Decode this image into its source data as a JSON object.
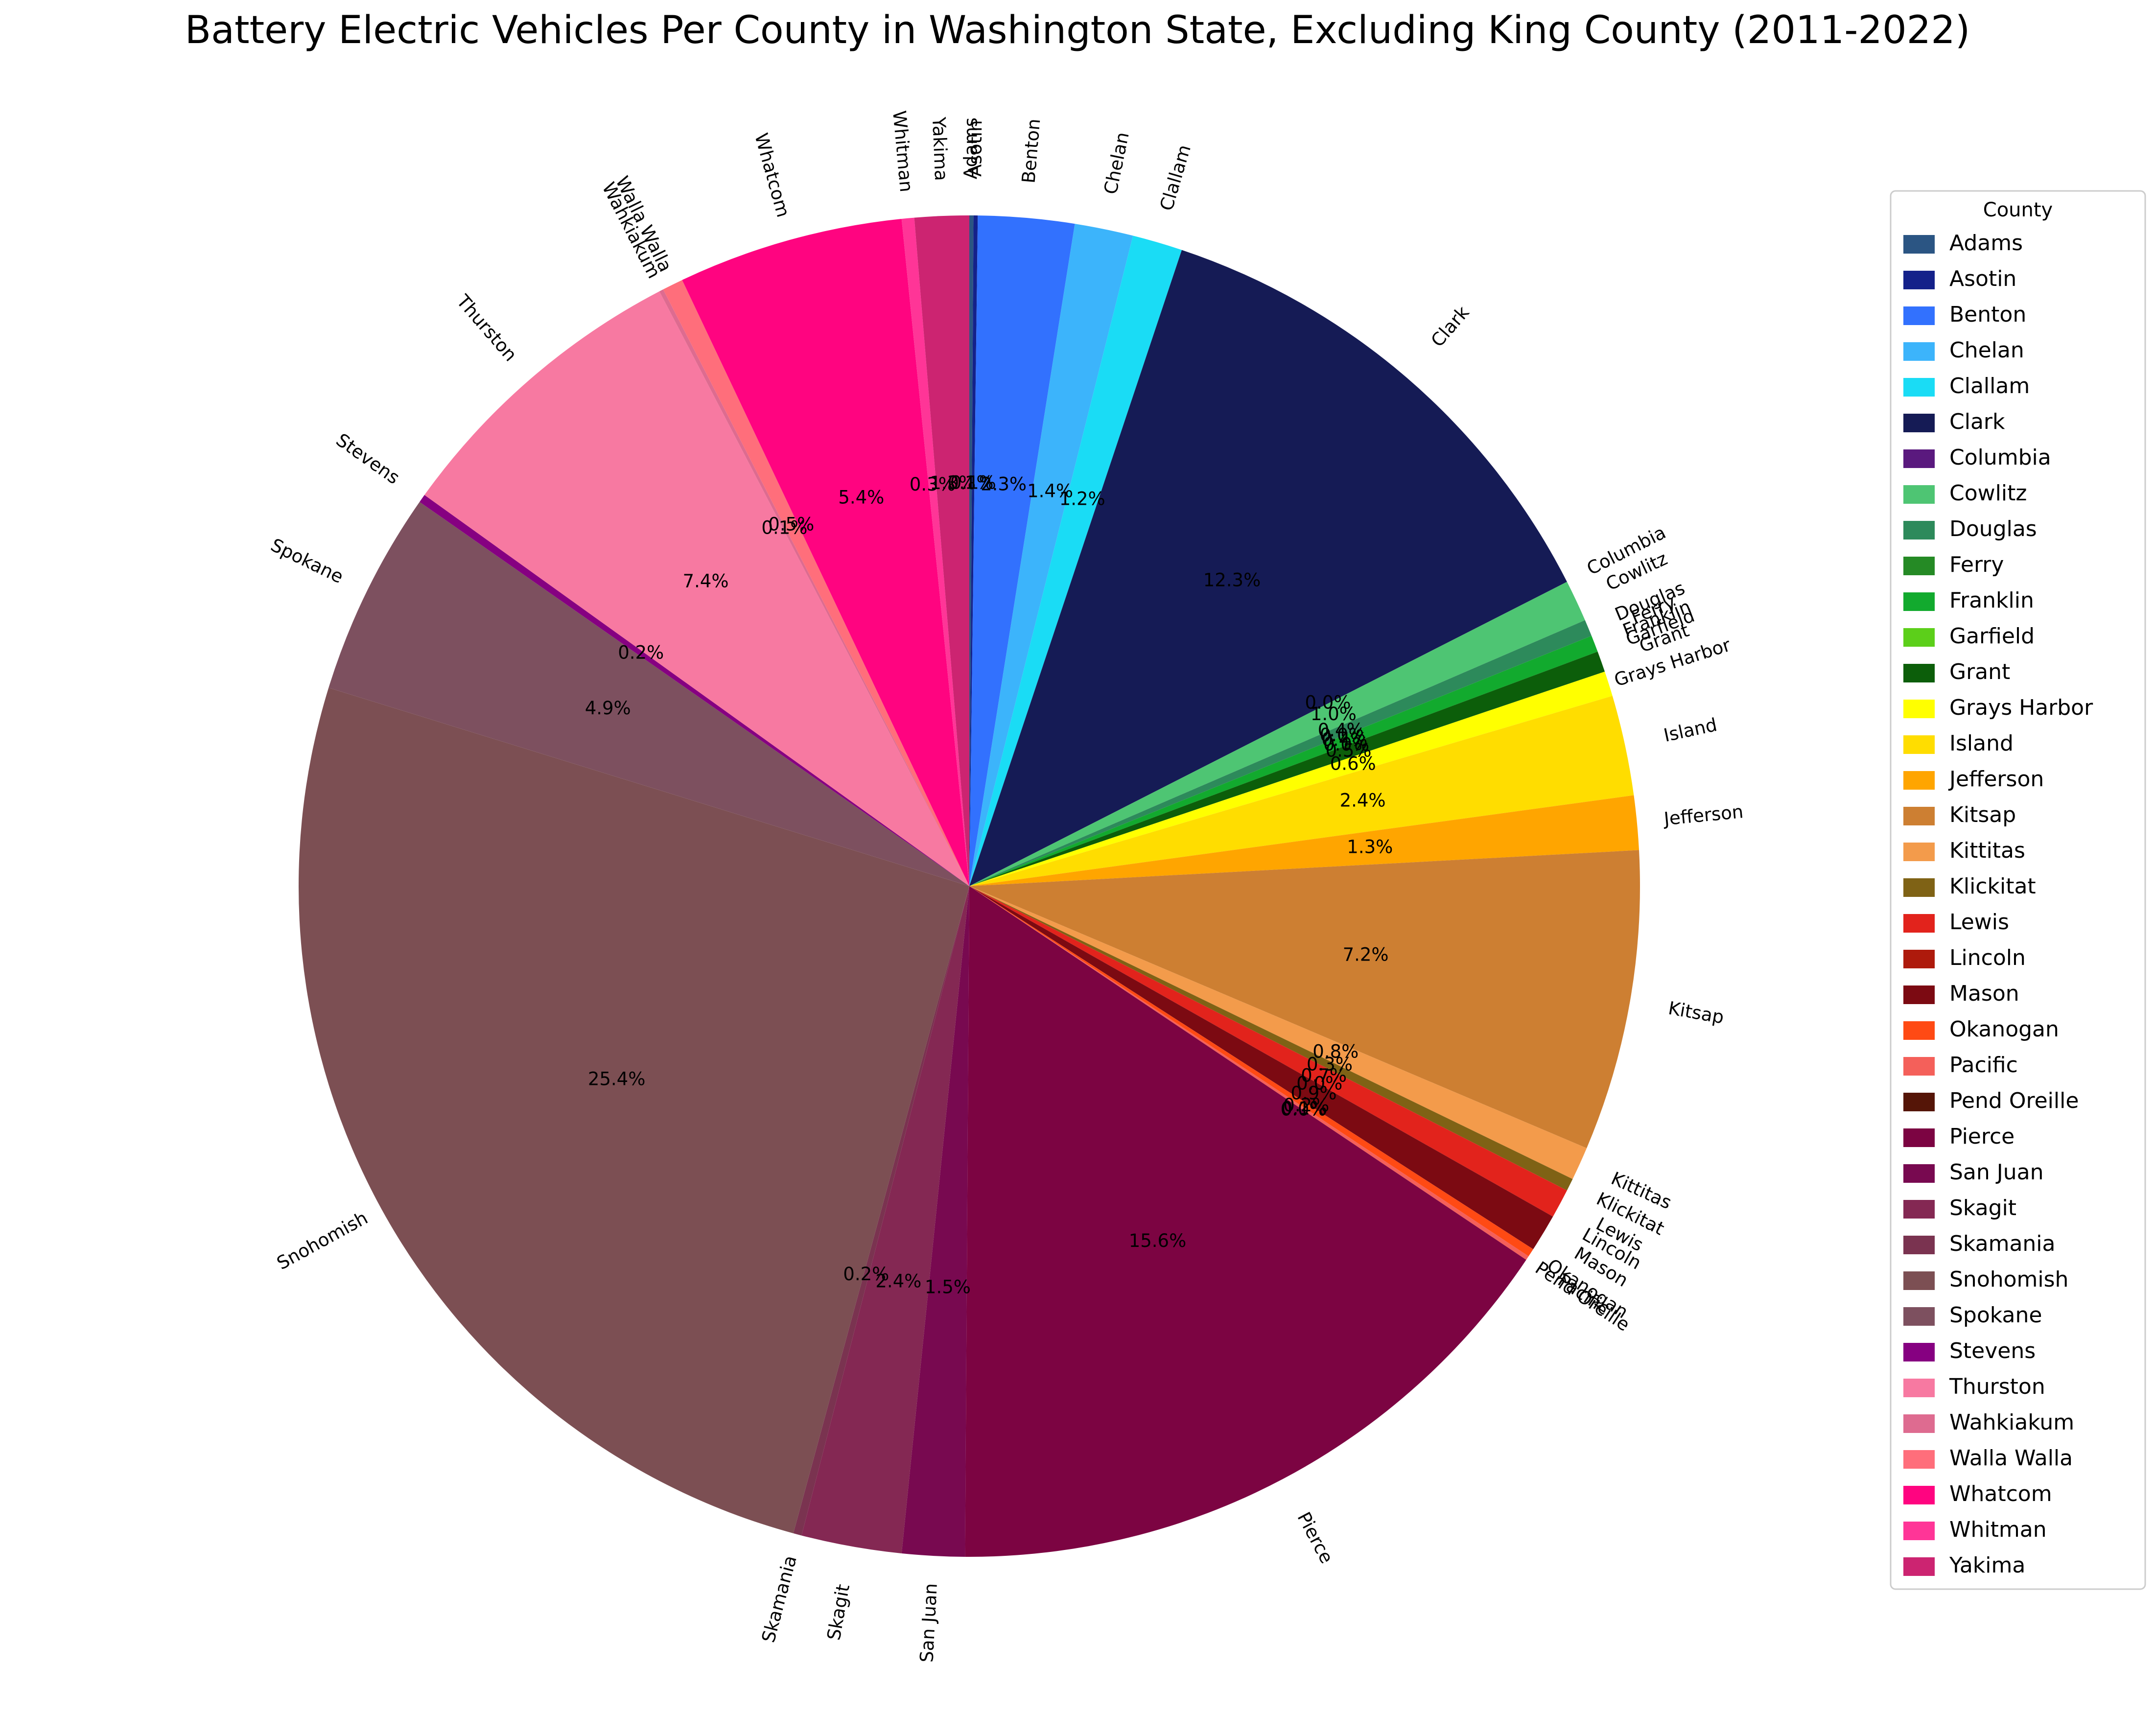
{
  "chart_data": {
    "type": "pie",
    "title": "Battery Electric Vehicles Per County in Washington State, Excluding King County (2011-2022)",
    "legend_title": "County",
    "legend_position": "right",
    "start_angle_deg": 90,
    "direction": "clockwise",
    "slices": [
      {
        "label": "Adams",
        "value": 0.1,
        "pct_label": "0.1%",
        "color": "#2b5583"
      },
      {
        "label": "Asotin",
        "value": 0.1,
        "pct_label": "0.1%",
        "color": "#14218a"
      },
      {
        "label": "Benton",
        "value": 2.3,
        "pct_label": "2.3%",
        "color": "#3271fe"
      },
      {
        "label": "Chelan",
        "value": 1.4,
        "pct_label": "1.4%",
        "color": "#3cb4fb"
      },
      {
        "label": "Clallam",
        "value": 1.2,
        "pct_label": "1.2%",
        "color": "#1adcf5"
      },
      {
        "label": "Clark",
        "value": 12.3,
        "pct_label": "12.3%",
        "color": "#151b55"
      },
      {
        "label": "Columbia",
        "value": 0.0,
        "pct_label": "0.0%",
        "color": "#5a197e"
      },
      {
        "label": "Cowlitz",
        "value": 1.0,
        "pct_label": "1.0%",
        "color": "#4ec573"
      },
      {
        "label": "Douglas",
        "value": 0.4,
        "pct_label": "0.4%",
        "color": "#2d8a5b"
      },
      {
        "label": "Ferry",
        "value": 0.0,
        "pct_label": "0.0%",
        "color": "#258a25"
      },
      {
        "label": "Franklin",
        "value": 0.4,
        "pct_label": "0.4%",
        "color": "#12aa2e"
      },
      {
        "label": "Garfield",
        "value": 0.0,
        "pct_label": "0.0%",
        "color": "#5ccf1a"
      },
      {
        "label": "Grant",
        "value": 0.5,
        "pct_label": "0.5%",
        "color": "#0c5e0a"
      },
      {
        "label": "Grays Harbor",
        "value": 0.6,
        "pct_label": "0.6%",
        "color": "#ffff00"
      },
      {
        "label": "Island",
        "value": 2.4,
        "pct_label": "2.4%",
        "color": "#ffdd00"
      },
      {
        "label": "Jefferson",
        "value": 1.3,
        "pct_label": "1.3%",
        "color": "#ffa500"
      },
      {
        "label": "Kitsap",
        "value": 7.2,
        "pct_label": "7.2%",
        "color": "#cd7f32"
      },
      {
        "label": "Kittitas",
        "value": 0.8,
        "pct_label": "0.8%",
        "color": "#f39b4b"
      },
      {
        "label": "Klickitat",
        "value": 0.3,
        "pct_label": "0.3%",
        "color": "#7f6215"
      },
      {
        "label": "Lewis",
        "value": 0.7,
        "pct_label": "0.7%",
        "color": "#e2231c"
      },
      {
        "label": "Lincoln",
        "value": 0.0,
        "pct_label": "0.0%",
        "color": "#ae1a0c"
      },
      {
        "label": "Mason",
        "value": 0.9,
        "pct_label": "0.9%",
        "color": "#7c0a12"
      },
      {
        "label": "Okanogan",
        "value": 0.2,
        "pct_label": "0.2%",
        "color": "#ff4a14"
      },
      {
        "label": "Pacific",
        "value": 0.1,
        "pct_label": "0.1%",
        "color": "#f4605a"
      },
      {
        "label": "Pend Oreille",
        "value": 0.0,
        "pct_label": "0.0%",
        "color": "#551507"
      },
      {
        "label": "Pierce",
        "value": 15.6,
        "pct_label": "15.6%",
        "color": "#7c0442"
      },
      {
        "label": "San Juan",
        "value": 1.5,
        "pct_label": "1.5%",
        "color": "#780950"
      },
      {
        "label": "Skagit",
        "value": 2.4,
        "pct_label": "2.4%",
        "color": "#842853"
      },
      {
        "label": "Skamania",
        "value": 0.2,
        "pct_label": "0.2%",
        "color": "#7a3350"
      },
      {
        "label": "Snohomish",
        "value": 25.4,
        "pct_label": "25.4%",
        "color": "#7c4f53"
      },
      {
        "label": "Spokane",
        "value": 4.9,
        "pct_label": "4.9%",
        "color": "#7d505f"
      },
      {
        "label": "Stevens",
        "value": 0.2,
        "pct_label": "0.2%",
        "color": "#860081"
      },
      {
        "label": "Thurston",
        "value": 7.4,
        "pct_label": "7.4%",
        "color": "#f779a1"
      },
      {
        "label": "Wahkiakum",
        "value": 0.1,
        "pct_label": "0.1%",
        "color": "#de6b90"
      },
      {
        "label": "Walla Walla",
        "value": 0.5,
        "pct_label": "0.5%",
        "color": "#ff6e7b"
      },
      {
        "label": "Whatcom",
        "value": 5.4,
        "pct_label": "5.4%",
        "color": "#ff0480"
      },
      {
        "label": "Whitman",
        "value": 0.3,
        "pct_label": "0.3%",
        "color": "#ff3597"
      },
      {
        "label": "Yakima",
        "value": 1.3,
        "pct_label": "1.3%",
        "color": "#cc2471"
      }
    ]
  }
}
